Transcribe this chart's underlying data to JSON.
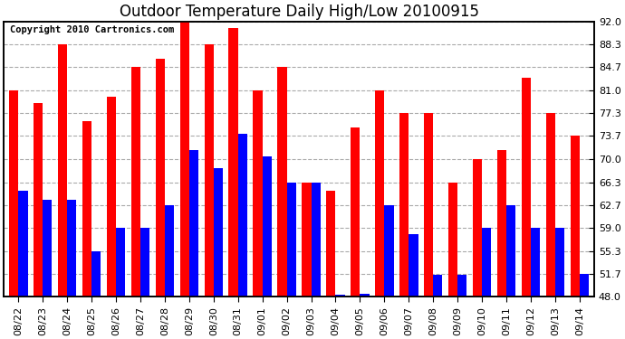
{
  "title": "Outdoor Temperature Daily High/Low 20100915",
  "copyright": "Copyright 2010 Cartronics.com",
  "dates": [
    "08/22",
    "08/23",
    "08/24",
    "08/25",
    "08/26",
    "08/27",
    "08/28",
    "08/29",
    "08/30",
    "08/31",
    "09/01",
    "09/02",
    "09/03",
    "09/04",
    "09/05",
    "09/06",
    "09/07",
    "09/08",
    "09/09",
    "09/10",
    "09/11",
    "09/12",
    "09/13",
    "09/14"
  ],
  "highs": [
    81.0,
    79.0,
    88.3,
    76.0,
    80.0,
    84.7,
    86.0,
    92.0,
    88.3,
    91.0,
    81.0,
    84.7,
    66.3,
    65.0,
    75.0,
    81.0,
    77.3,
    77.3,
    66.3,
    70.0,
    71.5,
    83.0,
    77.3,
    73.7
  ],
  "lows": [
    65.0,
    63.5,
    63.5,
    55.3,
    59.0,
    59.0,
    62.7,
    71.5,
    68.5,
    74.0,
    70.5,
    66.3,
    66.3,
    48.3,
    48.5,
    62.7,
    58.0,
    51.5,
    51.5,
    59.0,
    62.7,
    59.0,
    59.0,
    51.7
  ],
  "ylim_min": 48.0,
  "ylim_max": 92.0,
  "yticks": [
    48.0,
    51.7,
    55.3,
    59.0,
    62.7,
    66.3,
    70.0,
    73.7,
    77.3,
    81.0,
    84.7,
    88.3,
    92.0
  ],
  "high_color": "#ff0000",
  "low_color": "#0000ff",
  "bar_width": 0.38,
  "background_color": "#ffffff",
  "grid_color": "#aaaaaa",
  "title_fontsize": 12,
  "tick_fontsize": 8,
  "copyright_fontsize": 7.5
}
